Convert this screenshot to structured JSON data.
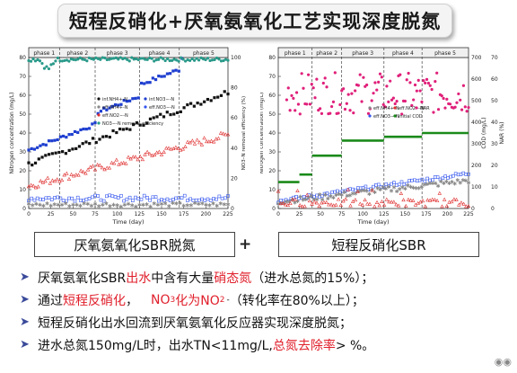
{
  "title": "短程反硝化+厌氧氨氧化工艺实现深度脱氮",
  "left_chart": {
    "phases": [
      "phase 1",
      "phase 2",
      "phase 3",
      "phase 4",
      "phase 5"
    ],
    "phase_bounds": [
      0,
      35,
      75,
      125,
      170,
      225
    ],
    "xlabel": "Time (day)",
    "ylabel": "Nitrogen concentration (mg/L)",
    "y2label": "NO3–N removal efficiency (%)",
    "xticks": [
      "0",
      "25",
      "50",
      "75",
      "100",
      "125",
      "150",
      "175",
      "200",
      "225"
    ],
    "yticks": [
      "0",
      "10",
      "20",
      "30",
      "40",
      "50",
      "60",
      "70",
      "80"
    ],
    "y2ticks": [
      "0",
      "20",
      "40",
      "60",
      "80",
      "100"
    ],
    "legend": [
      "inf.NH4+-N",
      "inf.NO3−-N",
      "eff.NH4+-N",
      "eff.NO3−-N",
      "eff.NO2−-N",
      "NO3−-N removal efficiency"
    ],
    "colors": {
      "inf_nh4": "#111111",
      "inf_no3": "#1f3fd0",
      "eff_nh4": "#888888",
      "eff_no3": "#3355ee",
      "eff_no2": "#e03030",
      "removal": "#2a9a8a"
    }
  },
  "right_chart": {
    "phases": [
      "phase 1",
      "phase 2",
      "phase 3",
      "phase 4",
      "phase 5"
    ],
    "phase_bounds": [
      0,
      40,
      75,
      125,
      170,
      225
    ],
    "xlabel": "Time (day)",
    "ylabel": "Nitrogen concentration (mg/L)",
    "y2label": "COD (mg/L)",
    "y3label": "NAR (%)",
    "xticks": [
      "0",
      "25",
      "50",
      "75",
      "100",
      "125",
      "150",
      "175",
      "200",
      "225"
    ],
    "yticks": [
      "0",
      "10",
      "20",
      "30",
      "40",
      "50",
      "60",
      "70",
      "80"
    ],
    "y2ticks": [
      "0",
      "100",
      "200",
      "300",
      "400",
      "500",
      "600",
      "700"
    ],
    "y3ticks": [
      "0",
      "10",
      "20",
      "30",
      "40",
      "50",
      "60",
      "70"
    ],
    "legend": [
      "eff.NH4+-N",
      "eff.NO2−-N",
      "eff.NO3−-N",
      "NAR",
      "initial COD"
    ],
    "colors": {
      "eff_nh4": "#888888",
      "eff_no2": "#e03030",
      "eff_no3": "#3355ee",
      "nar": "#e0207a",
      "cod": "#1a8a1a"
    }
  },
  "labels": {
    "left": "厌氧氨氧化SBR脱氮",
    "plus": "+",
    "right": "短程反硝化SBR"
  },
  "bullets": {
    "b1": {
      "pre": "厌氧氨氧化SBR",
      "red1": "出水",
      "mid": "中含有大量",
      "red2": "硝态氮",
      "post": "（进水总氮的15%）；"
    },
    "b2": {
      "pre": "通过",
      "red1": "短程反硝化",
      "gap": "，",
      "red2": "NO",
      "red2_sub": "3",
      "red3": " 化为NO",
      "red3_sub": "2",
      "sup": "-",
      "post": "（转化率在80%以上）；"
    },
    "b3": {
      "text": "短程反硝化出水回流到厌氧氨氧化反应器实现深度脱氮；"
    },
    "b4": {
      "pre": "进水总氮150mg/L时，出水TN<11mg/L,",
      "red": " 总氮去除率",
      "post": ">  %。"
    }
  }
}
